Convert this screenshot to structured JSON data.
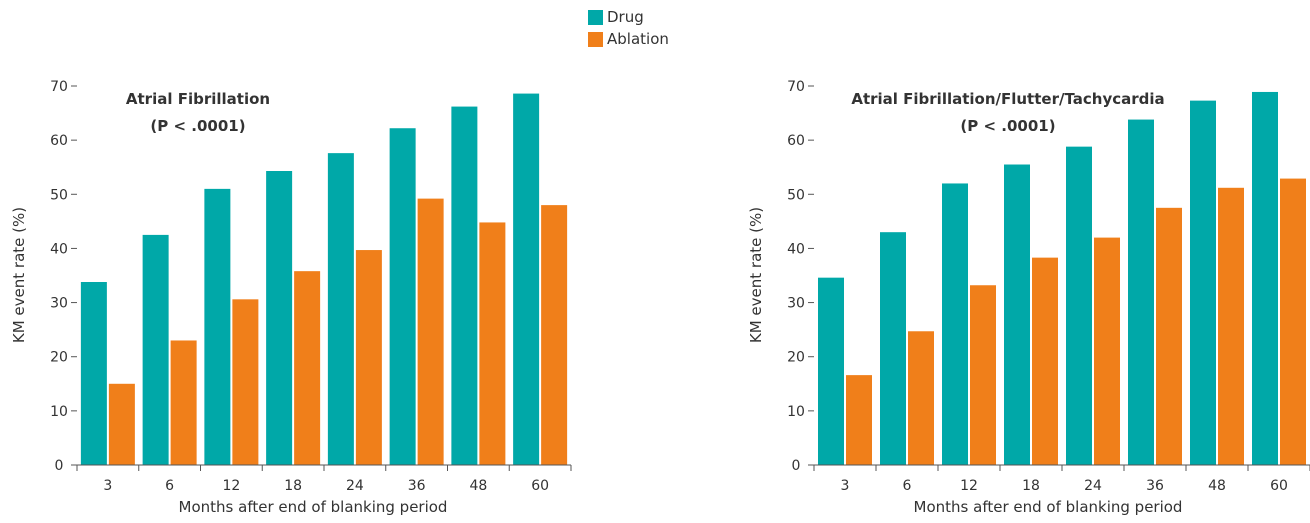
{
  "legend": {
    "items": [
      {
        "label": "Drug",
        "color": "#00A8A8"
      },
      {
        "label": "Ablation",
        "color": "#F07F1A"
      }
    ]
  },
  "chart_data": [
    {
      "type": "bar",
      "title": "Atrial Fibrillation",
      "subtitle": "(P < .0001)",
      "xlabel": "Months after end of blanking period",
      "ylabel": "KM event rate (%)",
      "ylim": [
        0,
        70
      ],
      "yticks": [
        0,
        10,
        20,
        30,
        40,
        50,
        60,
        70
      ],
      "categories": [
        "3",
        "6",
        "12",
        "18",
        "24",
        "36",
        "48",
        "60"
      ],
      "series": [
        {
          "name": "Drug",
          "color": "#00A8A8",
          "values": [
            33.8,
            42.5,
            51,
            54.3,
            57.6,
            62.2,
            66.2,
            68.6
          ]
        },
        {
          "name": "Ablation",
          "color": "#F07F1A",
          "values": [
            15,
            23,
            30.6,
            35.8,
            39.7,
            49.2,
            44.8,
            48
          ]
        }
      ]
    },
    {
      "type": "bar",
      "title": "Atrial Fibrillation/Flutter/Tachycardia",
      "subtitle": "(P < .0001)",
      "xlabel": "Months after end of blanking period",
      "ylabel": "KM event rate (%)",
      "ylim": [
        0,
        70
      ],
      "yticks": [
        0,
        10,
        20,
        30,
        40,
        50,
        60,
        70
      ],
      "categories": [
        "3",
        "6",
        "12",
        "18",
        "24",
        "36",
        "48",
        "60"
      ],
      "series": [
        {
          "name": "Drug",
          "color": "#00A8A8",
          "values": [
            34.6,
            43,
            52,
            55.5,
            58.8,
            63.8,
            67.3,
            68.9
          ]
        },
        {
          "name": "Ablation",
          "color": "#F07F1A",
          "values": [
            16.6,
            24.7,
            33.2,
            38.3,
            42,
            47.5,
            51.2,
            52.9
          ]
        }
      ]
    }
  ]
}
